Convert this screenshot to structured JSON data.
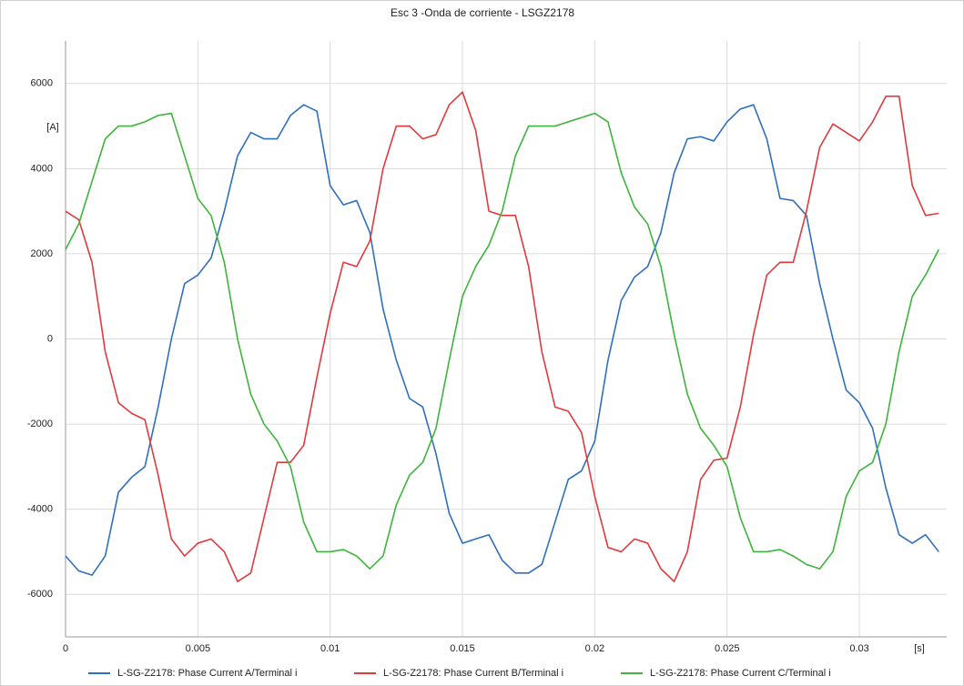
{
  "chart_data": {
    "type": "line",
    "title": "Esc 3 -Onda de corriente - LSGZ2178",
    "x_label": "[s]",
    "y_label": "[A]",
    "x": [
      0,
      0.0005,
      0.001,
      0.0015,
      0.002,
      0.0025,
      0.003,
      0.0035,
      0.004,
      0.0045,
      0.005,
      0.0055,
      0.006,
      0.0065,
      0.007,
      0.0075,
      0.008,
      0.0085,
      0.009,
      0.0095,
      0.01,
      0.0105,
      0.011,
      0.0115,
      0.012,
      0.0125,
      0.013,
      0.0135,
      0.014,
      0.0145,
      0.015,
      0.0155,
      0.016,
      0.0165,
      0.017,
      0.0175,
      0.018,
      0.0185,
      0.019,
      0.0195,
      0.02,
      0.0205,
      0.021,
      0.0215,
      0.022,
      0.0225,
      0.023,
      0.0235,
      0.024,
      0.0245,
      0.025,
      0.0255,
      0.026,
      0.0265,
      0.027,
      0.0275,
      0.028,
      0.0285,
      0.029,
      0.0295,
      0.03,
      0.0305,
      0.031,
      0.0315,
      0.032,
      0.0325,
      0.033
    ],
    "series": [
      {
        "name": "L-SG-Z2178: Phase Current A/Terminal i",
        "color": "#2f6fbf",
        "values": [
          -5100,
          -5450,
          -5550,
          -5100,
          -3600,
          -3250,
          -3000,
          -1600,
          0,
          1300,
          1500,
          1900,
          3000,
          4300,
          4850,
          4700,
          4700,
          5250,
          5500,
          5350,
          3600,
          3150,
          3250,
          2500,
          700,
          -500,
          -1400,
          -1600,
          -2700,
          -4100,
          -4800,
          -4700,
          -4600,
          -5200,
          -5500,
          -5500,
          -5300,
          -4300,
          -3300,
          -3100,
          -2400,
          -500,
          900,
          1450,
          1700,
          2500,
          3900,
          4700,
          4750,
          4650,
          5100,
          5400,
          5500,
          4700,
          3300,
          3250,
          2900,
          1300,
          0,
          -1200,
          -1500,
          -2100,
          -3500,
          -4600,
          -4800,
          -4600,
          -5000
        ]
      },
      {
        "name": "L-SG-Z2178: Phase Current B/Terminal i",
        "color": "#e0393e",
        "values": [
          3000,
          2800,
          1800,
          -300,
          -1500,
          -1750,
          -1900,
          -3200,
          -4700,
          -5100,
          -4800,
          -4700,
          -5000,
          -5700,
          -5500,
          -4200,
          -2900,
          -2900,
          -2500,
          -900,
          600,
          1800,
          1700,
          2300,
          4000,
          5000,
          5000,
          4700,
          4800,
          5500,
          5800,
          4900,
          3000,
          2900,
          2900,
          1700,
          -300,
          -1600,
          -1700,
          -2200,
          -3700,
          -4900,
          -5000,
          -4700,
          -4800,
          -5400,
          -5700,
          -5000,
          -3300,
          -2850,
          -2800,
          -1600,
          100,
          1500,
          1800,
          1800,
          3000,
          4500,
          5050,
          4850,
          4650,
          5100,
          5700,
          5700,
          3600,
          2900,
          2950
        ]
      },
      {
        "name": "L-SG-Z2178: Phase Current C/Terminal i",
        "color": "#3db43c",
        "values": [
          2100,
          2700,
          3700,
          4700,
          5000,
          5000,
          5100,
          5250,
          5300,
          4300,
          3300,
          2900,
          1800,
          0,
          -1300,
          -2000,
          -2400,
          -3000,
          -4300,
          -5000,
          -5000,
          -4950,
          -5100,
          -5400,
          -5100,
          -3900,
          -3200,
          -2900,
          -2100,
          -500,
          1000,
          1700,
          2200,
          3000,
          4300,
          5000,
          5000,
          5000,
          5100,
          5200,
          5300,
          5100,
          3900,
          3100,
          2700,
          1700,
          100,
          -1300,
          -2100,
          -2500,
          -3000,
          -4200,
          -5000,
          -5000,
          -4950,
          -5100,
          -5300,
          -5400,
          -5000,
          -3700,
          -3100,
          -2900,
          -2000,
          -300,
          1000,
          1500,
          2100
        ]
      }
    ],
    "xlim": [
      0,
      0.0333
    ],
    "ylim": [
      -7000,
      7000
    ],
    "xticks": [
      0,
      0.005,
      0.01,
      0.015,
      0.02,
      0.025,
      0.03
    ],
    "yticks": [
      -6000,
      -4000,
      -2000,
      0,
      2000,
      4000,
      6000
    ],
    "grid": true,
    "legend": "bottom"
  }
}
